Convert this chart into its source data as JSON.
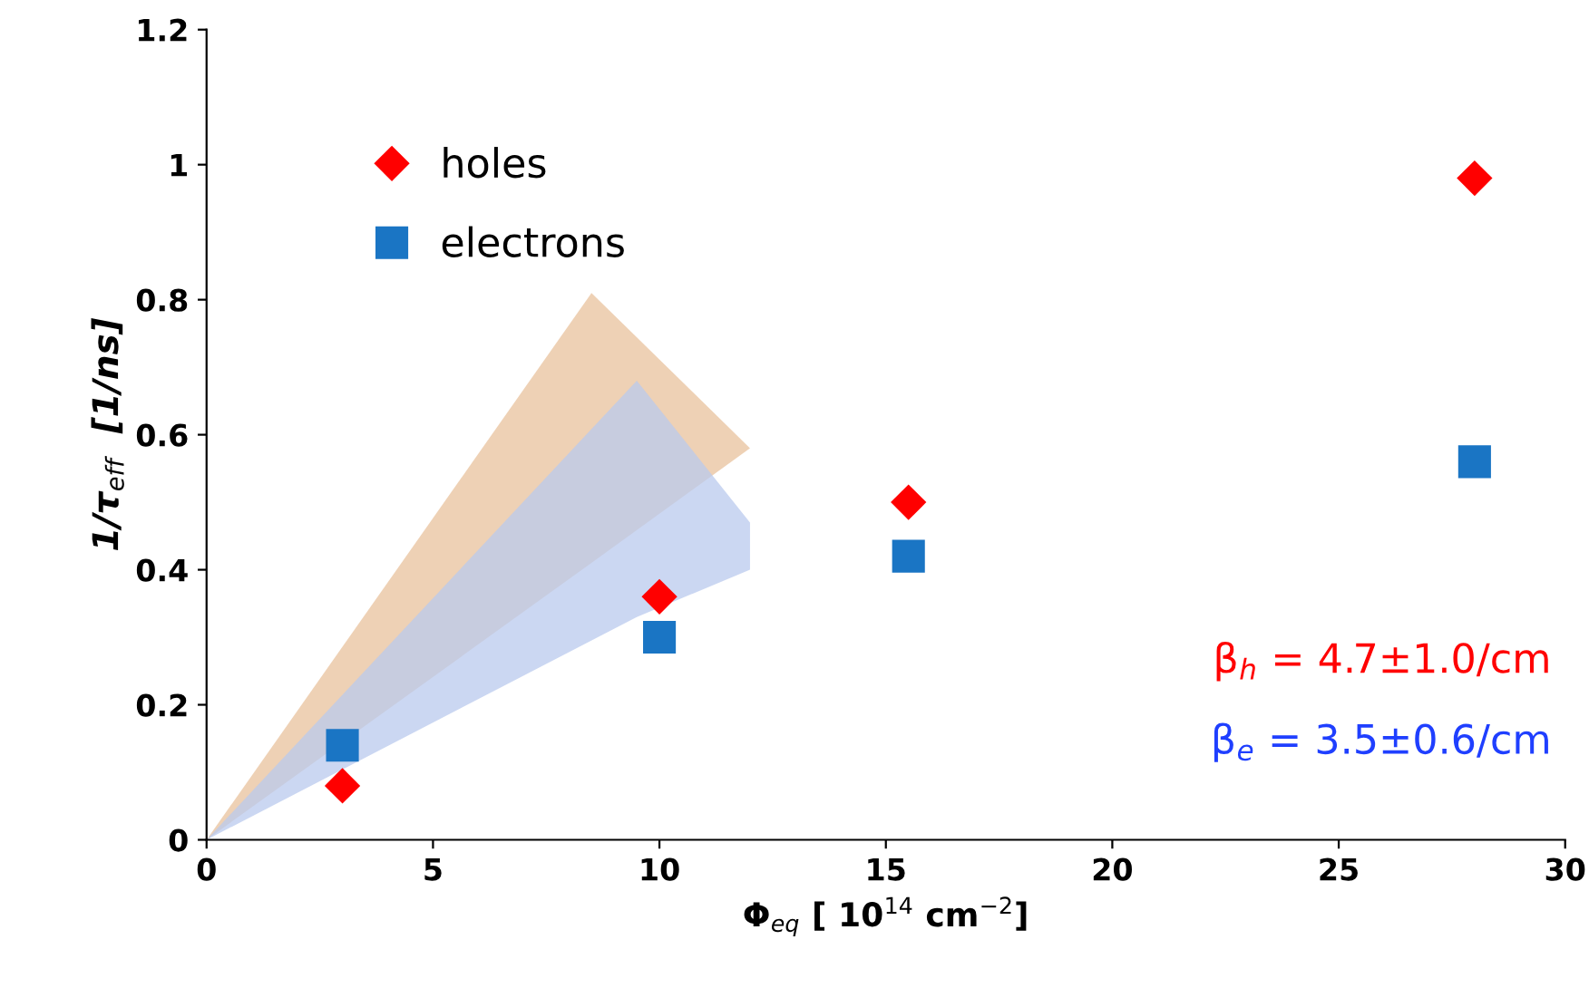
{
  "chart_data": {
    "type": "scatter",
    "xlabel": "Φ$_{eq}$ [ 10$^{14}$ cm$^{−2}$]",
    "ylabel": "1/τ$_{eff}$  [1/ns]",
    "xlim": [
      0,
      30
    ],
    "xticks": [
      0,
      5,
      10,
      15,
      20,
      25,
      30
    ],
    "ylim": [
      0,
      1.2
    ],
    "yticks": [
      0,
      0.2,
      0.4,
      0.6,
      0.8,
      1,
      1.2
    ],
    "grid": false,
    "legend": "top left",
    "series": [
      {
        "type": "area",
        "color": "#e8c19c",
        "x": [
          0,
          8.5,
          12
        ],
        "values": [
          null,
          null,
          null
        ],
        "lower": [
          0,
          0.41,
          0.58
        ],
        "upper": [
          0,
          0.81,
          0.58
        ]
      },
      {
        "type": "area",
        "color": "#b9c9ee",
        "x": [
          0,
          9.5,
          12
        ],
        "values": [
          null,
          null,
          null
        ],
        "lower": [
          0,
          0.33,
          0.4
        ],
        "upper": [
          0,
          0.68,
          0.47
        ]
      },
      {
        "name": "holes",
        "color": "#ff0000",
        "marker": "diamond",
        "x": [
          3,
          10,
          15.5,
          28
        ],
        "values": [
          0.08,
          0.36,
          0.5,
          0.98
        ]
      },
      {
        "name": "electrons",
        "color": "#1a75c4",
        "marker": "square",
        "x": [
          3,
          10,
          15.5,
          28
        ],
        "values": [
          0.14,
          0.3,
          0.42,
          0.56
        ]
      }
    ],
    "annotations": [
      "β$_{h}$ = 4.7±1.0/cm",
      "β$_{e}$ = 3.5±0.6/cm"
    ]
  }
}
